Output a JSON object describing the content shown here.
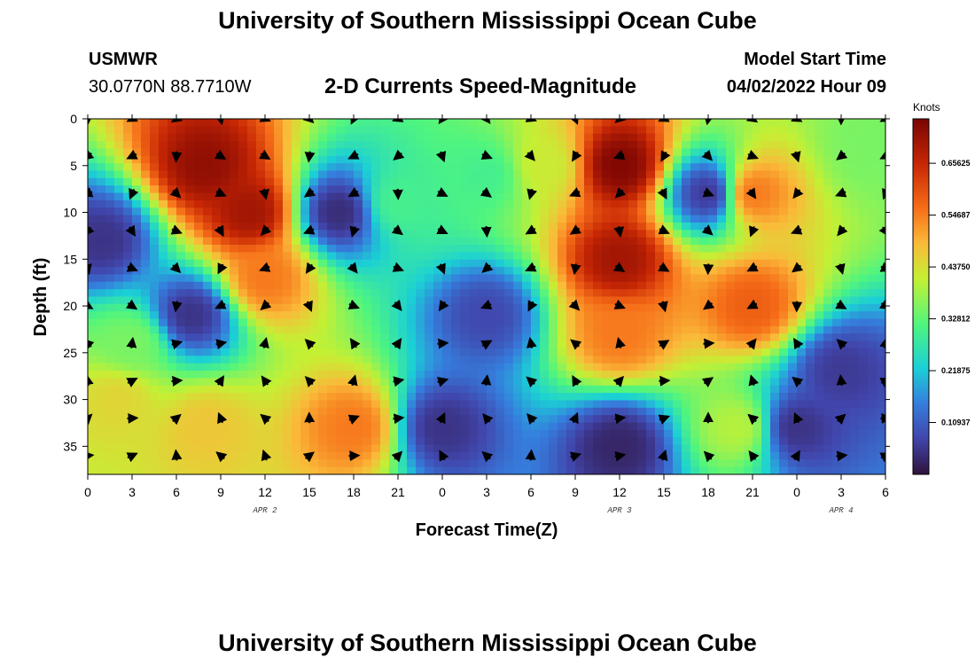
{
  "header": {
    "title": "University of Southern Mississippi Ocean Cube",
    "station": "USMWR",
    "coords": "30.0770N  88.7710W",
    "subtitle": "2-D Currents Speed-Magnitude",
    "model_label": "Model Start Time",
    "model_time": "04/02/2022 Hour 09"
  },
  "footer": {
    "title": "University of Southern Mississippi Ocean Cube"
  },
  "chart_data": {
    "type": "heatmap",
    "title": "2-D Currents Speed-Magnitude",
    "xlabel": "Forecast Time(Z)",
    "ylabel": "Depth (ft)",
    "x_ticks": [
      "0",
      "3",
      "6",
      "9",
      "12",
      "15",
      "18",
      "21",
      "0",
      "3",
      "6",
      "9",
      "12",
      "15",
      "18",
      "21",
      "0",
      "3",
      "6"
    ],
    "x_hours": [
      0,
      3,
      6,
      9,
      12,
      15,
      18,
      21,
      24,
      27,
      30,
      33,
      36,
      39,
      42,
      45,
      48,
      51,
      54
    ],
    "date_labels": [
      {
        "text": "APR 2",
        "hour": 12
      },
      {
        "text": "APR 3",
        "hour": 36
      },
      {
        "text": "APR 4",
        "hour": 51
      }
    ],
    "y_ticks": [
      0,
      5,
      10,
      15,
      20,
      25,
      30,
      35
    ],
    "ylim": [
      0,
      38
    ],
    "xlim": [
      0,
      54
    ],
    "colorbar": {
      "unit": "Knots",
      "range": [
        0,
        0.75
      ],
      "ticks": [
        "0.65625",
        "0.54687",
        "0.43750",
        "0.32812",
        "0.21875",
        "0.10937"
      ],
      "tick_values": [
        0.65625,
        0.546875,
        0.4375,
        0.328125,
        0.21875,
        0.109375
      ]
    },
    "speed_features": [
      {
        "hour": 8,
        "depth": 5,
        "speed": 0.72
      },
      {
        "hour": 11,
        "depth": 10,
        "speed": 0.7
      },
      {
        "hour": 12,
        "depth": 17,
        "speed": 0.55
      },
      {
        "hour": 7,
        "depth": 21,
        "speed": 0.05
      },
      {
        "hour": 1,
        "depth": 13,
        "speed": 0.05
      },
      {
        "hour": 3,
        "depth": 24,
        "speed": 0.35
      },
      {
        "hour": 2,
        "depth": 30,
        "speed": 0.45
      },
      {
        "hour": 8,
        "depth": 33,
        "speed": 0.47
      },
      {
        "hour": 18,
        "depth": 33,
        "speed": 0.55
      },
      {
        "hour": 17,
        "depth": 10,
        "speed": 0.04
      },
      {
        "hour": 21,
        "depth": 9,
        "speed": 0.3
      },
      {
        "hour": 27,
        "depth": 6,
        "speed": 0.3
      },
      {
        "hour": 31,
        "depth": 5,
        "speed": 0.42
      },
      {
        "hour": 36,
        "depth": 5,
        "speed": 0.74
      },
      {
        "hour": 36,
        "depth": 15,
        "speed": 0.7
      },
      {
        "hour": 36,
        "depth": 23,
        "speed": 0.55
      },
      {
        "hour": 36,
        "depth": 35,
        "speed": 0.03
      },
      {
        "hour": 24,
        "depth": 33,
        "speed": 0.05
      },
      {
        "hour": 27,
        "depth": 21,
        "speed": 0.08
      },
      {
        "hour": 42,
        "depth": 8,
        "speed": 0.06
      },
      {
        "hour": 45,
        "depth": 8,
        "speed": 0.55
      },
      {
        "hour": 45,
        "depth": 20,
        "speed": 0.58
      },
      {
        "hour": 44,
        "depth": 33,
        "speed": 0.4
      },
      {
        "hour": 48,
        "depth": 33,
        "speed": 0.05
      },
      {
        "hour": 51,
        "depth": 27,
        "speed": 0.06
      },
      {
        "hour": 53,
        "depth": 3,
        "speed": 0.35
      }
    ]
  }
}
